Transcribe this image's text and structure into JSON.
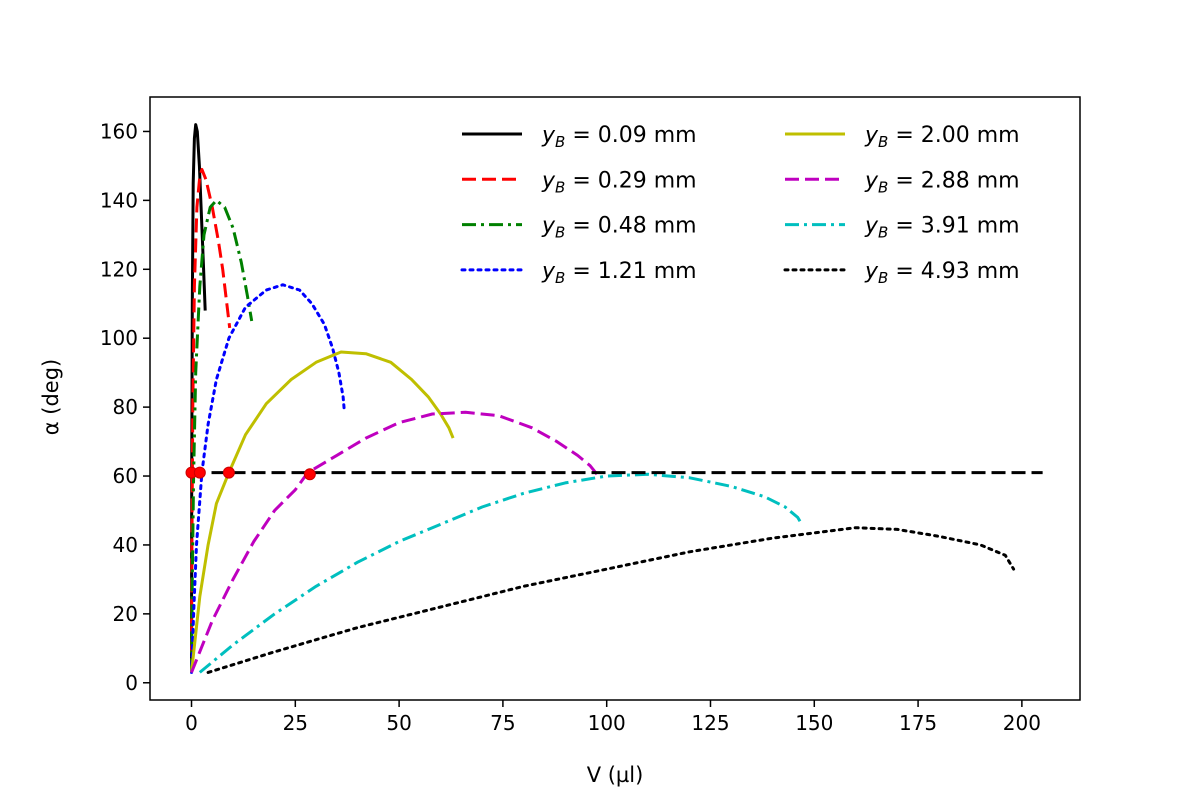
{
  "chart_data": {
    "type": "line",
    "xlabel": "V (µl)",
    "ylabel": "α (deg)",
    "xlim": [
      -10,
      214
    ],
    "ylim": [
      -5,
      170
    ],
    "xticks": [
      0,
      25,
      50,
      75,
      100,
      125,
      150,
      175,
      200
    ],
    "yticks": [
      0,
      20,
      40,
      60,
      80,
      100,
      120,
      140,
      160
    ],
    "grid": false,
    "legend": {
      "position": "top-right",
      "columns": 2,
      "prefix": "y",
      "subscript": "B",
      "unit": "mm"
    },
    "series": [
      {
        "name": "0.09",
        "color": "#000000",
        "dash": "solid",
        "points": [
          [
            0,
            3
          ],
          [
            0.05,
            60
          ],
          [
            0.2,
            110
          ],
          [
            0.4,
            145
          ],
          [
            0.7,
            158
          ],
          [
            1.0,
            162
          ],
          [
            1.4,
            160
          ],
          [
            1.9,
            150
          ],
          [
            2.4,
            135
          ],
          [
            2.9,
            120
          ],
          [
            3.3,
            108
          ]
        ]
      },
      {
        "name": "0.29",
        "color": "#ff0000",
        "dash": "dashed",
        "points": [
          [
            0,
            3
          ],
          [
            0.1,
            40
          ],
          [
            0.3,
            80
          ],
          [
            0.7,
            115
          ],
          [
            1.3,
            138
          ],
          [
            2.0,
            147
          ],
          [
            2.5,
            149
          ],
          [
            3.5,
            146
          ],
          [
            5,
            138
          ],
          [
            6.5,
            128
          ],
          [
            7.5,
            120
          ],
          [
            8.5,
            110
          ],
          [
            9.2,
            103
          ]
        ]
      },
      {
        "name": "0.48",
        "color": "#008000",
        "dash": "dashdot",
        "points": [
          [
            0,
            3
          ],
          [
            0.2,
            30
          ],
          [
            0.5,
            60
          ],
          [
            1,
            90
          ],
          [
            2,
            115
          ],
          [
            3,
            130
          ],
          [
            4.5,
            138
          ],
          [
            6,
            140
          ],
          [
            8,
            138
          ],
          [
            10,
            132
          ],
          [
            12,
            122
          ],
          [
            13.5,
            112
          ],
          [
            14.5,
            105
          ]
        ]
      },
      {
        "name": "1.21",
        "color": "#0000ff",
        "dash": "dotted",
        "points": [
          [
            0,
            3
          ],
          [
            0.5,
            20
          ],
          [
            1.2,
            40
          ],
          [
            2.5,
            61
          ],
          [
            4,
            75
          ],
          [
            6,
            88
          ],
          [
            9,
            100
          ],
          [
            13,
            109
          ],
          [
            18,
            114
          ],
          [
            22,
            115.5
          ],
          [
            26,
            114
          ],
          [
            29,
            110
          ],
          [
            32,
            104
          ],
          [
            34,
            97
          ],
          [
            35.5,
            90
          ],
          [
            36.5,
            83
          ],
          [
            36.8,
            79
          ]
        ]
      },
      {
        "name": "2.00",
        "color": "#bfbf00",
        "dash": "solid",
        "points": [
          [
            0,
            3
          ],
          [
            2,
            25
          ],
          [
            4,
            40
          ],
          [
            6,
            52
          ],
          [
            9,
            61
          ],
          [
            13,
            72
          ],
          [
            18,
            81
          ],
          [
            24,
            88
          ],
          [
            30,
            93
          ],
          [
            36,
            96
          ],
          [
            42,
            95.5
          ],
          [
            48,
            93
          ],
          [
            53,
            88
          ],
          [
            57,
            83
          ],
          [
            60,
            78
          ],
          [
            62,
            74
          ],
          [
            63,
            71
          ]
        ]
      },
      {
        "name": "2.88",
        "color": "#bf00bf",
        "dash": "dashed",
        "points": [
          [
            0,
            3
          ],
          [
            5,
            18
          ],
          [
            10,
            30
          ],
          [
            15,
            41
          ],
          [
            20,
            50
          ],
          [
            25,
            56
          ],
          [
            28,
            61
          ],
          [
            35,
            66
          ],
          [
            42,
            71
          ],
          [
            50,
            75.5
          ],
          [
            58,
            78
          ],
          [
            66,
            78.5
          ],
          [
            74,
            77.5
          ],
          [
            82,
            74
          ],
          [
            88,
            70
          ],
          [
            93,
            66
          ],
          [
            96,
            63
          ],
          [
            98,
            60
          ]
        ]
      },
      {
        "name": "3.91",
        "color": "#00bfbf",
        "dash": "dashdot",
        "points": [
          [
            2,
            3
          ],
          [
            10,
            11
          ],
          [
            20,
            20
          ],
          [
            30,
            28
          ],
          [
            40,
            35
          ],
          [
            50,
            41
          ],
          [
            60,
            46
          ],
          [
            70,
            51
          ],
          [
            80,
            55
          ],
          [
            90,
            58
          ],
          [
            100,
            60
          ],
          [
            110,
            60.5
          ],
          [
            120,
            59.5
          ],
          [
            130,
            57
          ],
          [
            138,
            54
          ],
          [
            143,
            51
          ],
          [
            146,
            48
          ],
          [
            147,
            46
          ]
        ]
      },
      {
        "name": "4.93",
        "color": "#000000",
        "dash": "dotted",
        "points": [
          [
            4,
            3
          ],
          [
            20,
            9
          ],
          [
            40,
            16
          ],
          [
            60,
            22
          ],
          [
            80,
            28
          ],
          [
            100,
            33
          ],
          [
            120,
            38
          ],
          [
            140,
            42
          ],
          [
            150,
            43.5
          ],
          [
            160,
            45
          ],
          [
            170,
            44.5
          ],
          [
            180,
            42.5
          ],
          [
            190,
            40
          ],
          [
            196,
            37
          ],
          [
            198,
            33
          ]
        ]
      }
    ],
    "reference_line": {
      "y": 61,
      "x_start": 0,
      "x_end": 205,
      "color": "#000000",
      "dash": "dashed"
    },
    "markers": {
      "color": "#ff0000",
      "points": [
        [
          0,
          61
        ],
        [
          2,
          61
        ],
        [
          9,
          61
        ],
        [
          28.5,
          60.5
        ]
      ]
    }
  }
}
